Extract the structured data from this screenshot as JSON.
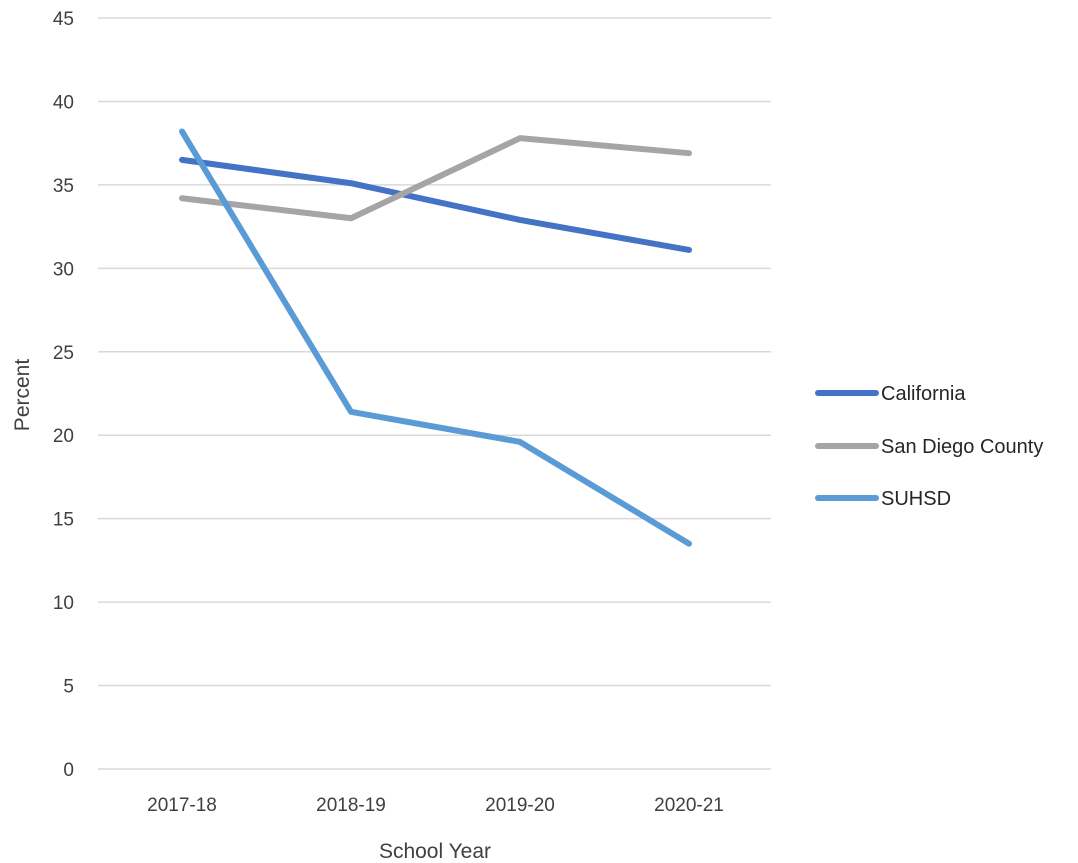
{
  "chart_data": {
    "type": "line",
    "title": "",
    "xlabel": "School Year",
    "ylabel": "Percent",
    "categories": [
      "2017-18",
      "2018-19",
      "2019-20",
      "2020-21"
    ],
    "ylim": [
      0,
      45
    ],
    "yticks": [
      0,
      5,
      10,
      15,
      20,
      25,
      30,
      35,
      40,
      45
    ],
    "grid": true,
    "legend_position": "right",
    "series": [
      {
        "name": "California",
        "color": "#4472c4",
        "values": [
          36.5,
          35.1,
          32.9,
          31.1
        ]
      },
      {
        "name": "San Diego County",
        "color": "#a5a5a5",
        "values": [
          34.2,
          33.0,
          37.8,
          36.9
        ]
      },
      {
        "name": "SUHSD",
        "color": "#5b9bd5",
        "values": [
          38.2,
          21.4,
          19.6,
          13.5
        ]
      }
    ]
  }
}
